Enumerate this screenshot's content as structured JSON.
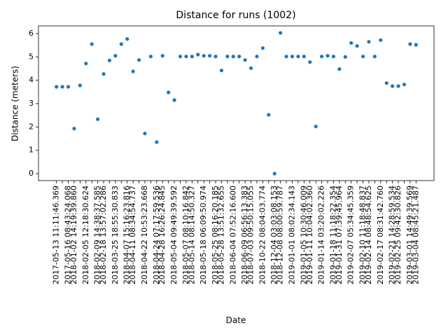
{
  "chart_data": {
    "type": "scatter",
    "title": "Distance for runs (1002)",
    "x_label": "Date",
    "y_label": "Distance (meters)",
    "color": "#1f77b4",
    "categories": [
      "2017-05-13 11:11:46.369",
      null,
      "2017-05-16 08:43:24.068",
      "2018-01-02 14:19:39.860",
      null,
      "2018-02-05 12:18:30.624",
      null,
      "2018-02-09 14:38:37.585",
      "2018-02-18 13:57:02.286",
      null,
      "2018-03-25 18:55:30.833",
      null,
      "2018-04-07 15:16:23.816",
      "2018-04-11 08:34:54.737",
      null,
      "2018-04-22 10:53:23.668",
      null,
      "2018-04-24 07:17:59.536",
      "2018-04-28 16:26:24.845",
      null,
      "2018-05-04 09:49:39.592",
      null,
      "2018-05-07 08:10:16.842",
      "2018-05-14 08:14:50.327",
      null,
      "2018-05-18 06:09:50.974",
      null,
      "2018-05-25 08:16:20.185",
      "2018-05-28 13:51:32.655",
      null,
      "2018-06-04 07:52:16.600",
      null,
      "2018-06-09 06:56:13.383",
      "2018-07-03 09:50:15.055",
      null,
      "2018-10-22 08:04:03.774",
      null,
      "2018-12-04 03:03:08.153",
      "2018-12-08 08:00:59.787",
      null,
      "2019-01-01 08:02:34.143",
      null,
      "2019-01-05 10:30:46.009",
      "2019-01-11 10:04:02.360",
      null,
      "2019-01-14 03:20:02.226",
      null,
      "2019-01-18 11:18:22.354",
      "2019-01-31 07:39:45.964",
      null,
      "2019-02-07 05:34:45.359",
      null,
      "2019-02-10 11:18:48.837",
      "2019-02-14 08:48:54.625",
      null,
      "2019-02-17 08:31:42.760",
      null,
      "2019-02-21 14:28:59.534",
      "2019-02-25 09:42:30.826",
      null,
      "2019-03-01 14:49:39.569",
      "2019-03-04 08:45:21.487"
    ],
    "values": [
      3.72,
      3.72,
      3.72,
      1.93,
      3.78,
      4.72,
      5.55,
      2.33,
      4.27,
      4.85,
      5.05,
      5.55,
      5.77,
      4.38,
      4.87,
      1.72,
      5.02,
      1.35,
      5.05,
      3.48,
      3.15,
      5.02,
      5.02,
      5.02,
      5.1,
      5.05,
      5.05,
      5.02,
      4.42,
      5.02,
      5.02,
      5.02,
      4.87,
      4.52,
      5.02,
      5.38,
      2.52,
      0.0,
      6.03,
      5.02,
      5.02,
      5.02,
      5.02,
      4.78,
      2.02,
      5.02,
      5.05,
      5.02,
      4.48,
      5.0,
      5.6,
      5.47,
      5.02,
      5.65,
      5.02,
      5.72,
      3.88,
      3.75,
      3.75,
      3.82,
      5.55,
      5.52
    ],
    "ylim": [
      -0.3,
      6.33
    ],
    "yticks": [
      0,
      1,
      2,
      3,
      4,
      5,
      6
    ],
    "grid": false
  }
}
